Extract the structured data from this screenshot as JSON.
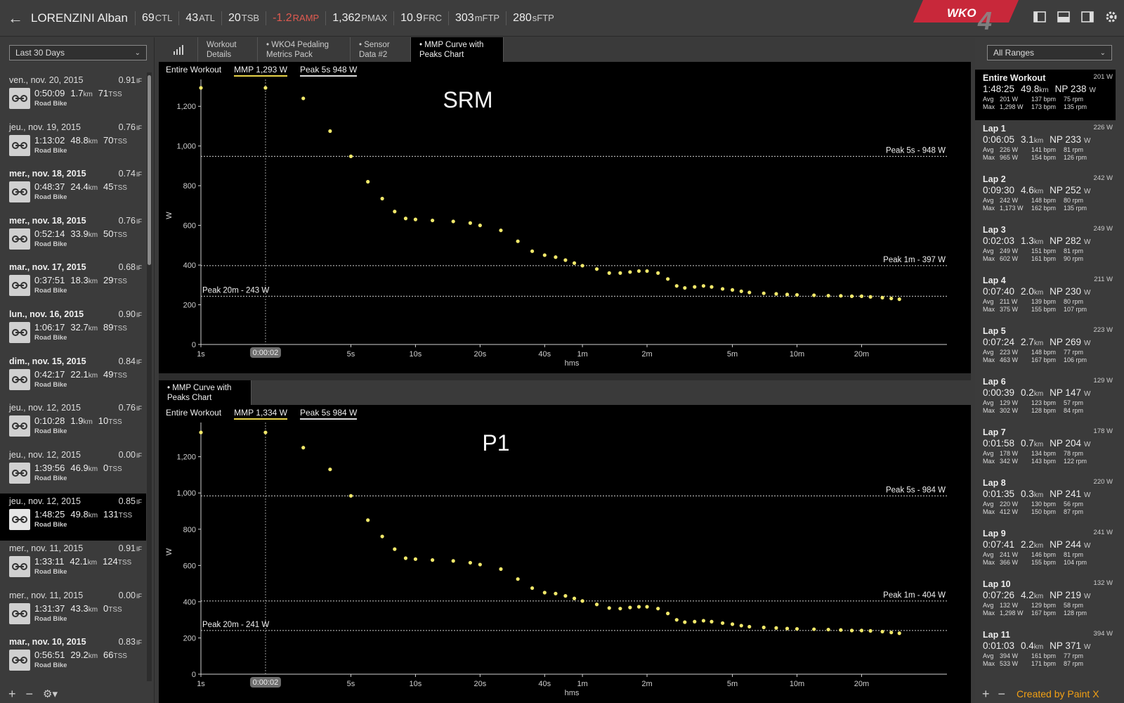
{
  "header": {
    "athlete": "LORENZINI Alban",
    "metrics": [
      {
        "value": "69",
        "unit": "CTL",
        "neg": false
      },
      {
        "value": "43",
        "unit": "ATL",
        "neg": false
      },
      {
        "value": "20",
        "unit": "TSB",
        "neg": false
      },
      {
        "value": "-1.2",
        "unit": "RAMP",
        "neg": true
      },
      {
        "value": "1,362",
        "unit": "PMAX",
        "neg": false
      },
      {
        "value": "10.9",
        "unit": "FRC",
        "neg": false
      },
      {
        "value": "303",
        "unit": "mFTP",
        "neg": false
      },
      {
        "value": "280",
        "unit": "sFTP",
        "neg": false
      }
    ],
    "logo_text": "WKO",
    "logo_num": "4",
    "accent": "#c8283a"
  },
  "left": {
    "range": "Last 30 Days",
    "workouts": [
      {
        "date": "ven., nov. 20, 2015",
        "bold": false,
        "if": "0.91",
        "time": "0:50:09",
        "dist": "1.7",
        "tss": "71",
        "type": "Road Bike",
        "selected": false
      },
      {
        "date": "jeu., nov. 19, 2015",
        "bold": false,
        "if": "0.76",
        "time": "1:13:02",
        "dist": "48.8",
        "tss": "70",
        "type": "Road Bike",
        "selected": false
      },
      {
        "date": "mer., nov. 18, 2015",
        "bold": true,
        "if": "0.74",
        "time": "0:48:37",
        "dist": "24.4",
        "tss": "45",
        "type": "Road Bike",
        "selected": false
      },
      {
        "date": "mer., nov. 18, 2015",
        "bold": true,
        "if": "0.76",
        "time": "0:52:14",
        "dist": "33.9",
        "tss": "50",
        "type": "Road Bike",
        "selected": false
      },
      {
        "date": "mar., nov. 17, 2015",
        "bold": true,
        "if": "0.68",
        "time": "0:37:51",
        "dist": "18.3",
        "tss": "29",
        "type": "Road Bike",
        "selected": false
      },
      {
        "date": "lun., nov. 16, 2015",
        "bold": true,
        "if": "0.90",
        "time": "1:06:17",
        "dist": "32.7",
        "tss": "89",
        "type": "Road Bike",
        "selected": false
      },
      {
        "date": "dim., nov. 15, 2015",
        "bold": true,
        "if": "0.84",
        "time": "0:42:17",
        "dist": "22.1",
        "tss": "49",
        "type": "Road Bike",
        "selected": false
      },
      {
        "date": "jeu., nov. 12, 2015",
        "bold": false,
        "if": "0.76",
        "time": "0:10:28",
        "dist": "1.9",
        "tss": "10",
        "type": "Road Bike",
        "selected": false
      },
      {
        "date": "jeu., nov. 12, 2015",
        "bold": false,
        "if": "0.00",
        "time": "1:39:56",
        "dist": "46.9",
        "tss": "0",
        "type": "Road Bike",
        "selected": false
      },
      {
        "date": "jeu., nov. 12, 2015",
        "bold": false,
        "if": "0.85",
        "time": "1:48:25",
        "dist": "49.8",
        "tss": "131",
        "type": "Road Bike",
        "selected": true
      },
      {
        "date": "mer., nov. 11, 2015",
        "bold": false,
        "if": "0.91",
        "time": "1:33:11",
        "dist": "42.1",
        "tss": "124",
        "type": "Road Bike",
        "selected": false
      },
      {
        "date": "mer., nov. 11, 2015",
        "bold": false,
        "if": "0.00",
        "time": "1:31:37",
        "dist": "43.3",
        "tss": "0",
        "type": "Road Bike",
        "selected": false
      },
      {
        "date": "mar., nov. 10, 2015",
        "bold": true,
        "if": "0.83",
        "time": "0:56:51",
        "dist": "29.2",
        "tss": "66",
        "type": "Road Bike",
        "selected": false
      }
    ],
    "units": {
      "km": "km",
      "tss": "TSS",
      "if": "IF"
    }
  },
  "tabs": [
    {
      "label1": "Workout",
      "label2": "Details",
      "active": false
    },
    {
      "label1": "• WKO4 Pedaling",
      "label2": "Metrics Pack",
      "active": false
    },
    {
      "label1": "• Sensor",
      "label2": "Data #2",
      "active": false
    },
    {
      "label1": "• MMP Curve with",
      "label2": "Peaks Chart",
      "active": true
    }
  ],
  "tab2": {
    "label1": "• MMP Curve with",
    "label2": "Peaks Chart"
  },
  "chart_data": [
    {
      "type": "scatter",
      "title": "SRM",
      "header": {
        "range": "Entire Workout",
        "mmp": "MMP  1,293 W",
        "peak": "Peak 5s  948 W"
      },
      "xlabel": "hms",
      "ylabel": "W",
      "x_ticks": [
        "1s",
        "5s",
        "10s",
        "20s",
        "40s",
        "1m",
        "2m",
        "5m",
        "10m",
        "20m"
      ],
      "y_ticks": [
        "0",
        "200",
        "400",
        "600",
        "800",
        "1,000",
        "1,200"
      ],
      "ylim": [
        0,
        1300
      ],
      "cursor_label": "0:00:02",
      "peaks": [
        {
          "label": "Peak 5s - 948 W",
          "value": 948,
          "side": "right"
        },
        {
          "label": "Peak 1m - 397 W",
          "value": 397,
          "side": "right"
        },
        {
          "label": "Peak 20m - 243 W",
          "value": 243,
          "side": "left"
        }
      ],
      "points_seconds": [
        1,
        2,
        3,
        4,
        5,
        6,
        7,
        8,
        9,
        10,
        12,
        15,
        18,
        20,
        25,
        30,
        35,
        40,
        45,
        50,
        55,
        60,
        70,
        80,
        90,
        100,
        110,
        120,
        135,
        150,
        165,
        180,
        200,
        220,
        240,
        270,
        300,
        330,
        360,
        420,
        480,
        540,
        600,
        720,
        840,
        960,
        1080,
        1200,
        1320,
        1500,
        1650,
        1800
      ],
      "points_watts": [
        1293,
        1293,
        1240,
        1075,
        948,
        820,
        735,
        670,
        635,
        630,
        625,
        620,
        612,
        600,
        575,
        520,
        470,
        450,
        440,
        425,
        410,
        397,
        380,
        360,
        360,
        365,
        370,
        370,
        360,
        330,
        295,
        285,
        290,
        295,
        290,
        280,
        275,
        268,
        262,
        258,
        255,
        252,
        250,
        248,
        246,
        245,
        243,
        243,
        240,
        236,
        232,
        228
      ]
    },
    {
      "type": "scatter",
      "title": "P1",
      "header": {
        "range": "Entire Workout",
        "mmp": "MMP  1,334 W",
        "peak": "Peak 5s  984 W"
      },
      "xlabel": "hms",
      "ylabel": "W",
      "x_ticks": [
        "1s",
        "5s",
        "10s",
        "20s",
        "40s",
        "1m",
        "2m",
        "5m",
        "10m",
        "20m"
      ],
      "y_ticks": [
        "0",
        "200",
        "400",
        "600",
        "800",
        "1,000",
        "1,200"
      ],
      "ylim": [
        0,
        1350
      ],
      "cursor_label": "0:00:02",
      "peaks": [
        {
          "label": "Peak 5s - 984 W",
          "value": 984,
          "side": "right"
        },
        {
          "label": "Peak 1m - 404 W",
          "value": 404,
          "side": "right"
        },
        {
          "label": "Peak 20m - 241 W",
          "value": 241,
          "side": "left"
        }
      ],
      "points_seconds": [
        1,
        2,
        3,
        4,
        5,
        6,
        7,
        8,
        9,
        10,
        12,
        15,
        18,
        20,
        25,
        30,
        35,
        40,
        45,
        50,
        55,
        60,
        70,
        80,
        90,
        100,
        110,
        120,
        135,
        150,
        165,
        180,
        200,
        220,
        240,
        270,
        300,
        330,
        360,
        420,
        480,
        540,
        600,
        720,
        840,
        960,
        1080,
        1200,
        1320,
        1500,
        1650,
        1800
      ],
      "points_watts": [
        1334,
        1334,
        1250,
        1130,
        984,
        850,
        760,
        690,
        640,
        635,
        630,
        625,
        615,
        605,
        580,
        525,
        475,
        450,
        445,
        432,
        418,
        404,
        385,
        365,
        362,
        368,
        372,
        372,
        362,
        335,
        300,
        287,
        290,
        295,
        290,
        282,
        276,
        268,
        262,
        258,
        255,
        252,
        250,
        248,
        246,
        244,
        241,
        241,
        239,
        235,
        230,
        226
      ]
    }
  ],
  "right": {
    "range": "All Ranges",
    "laps": [
      {
        "name": "Entire Workout",
        "w": "201 W",
        "time": "1:48:25",
        "dist": "49.8",
        "np": "NP 238",
        "avg_w": "201 W",
        "avg_hr": "137 bpm",
        "avg_cad": "75 rpm",
        "max_w": "1,298 W",
        "max_hr": "173 bpm",
        "max_cad": "135 rpm",
        "selected": true
      },
      {
        "name": "Lap 1",
        "w": "226 W",
        "time": "0:06:05",
        "dist": "3.1",
        "np": "NP 233",
        "avg_w": "226 W",
        "avg_hr": "141 bpm",
        "avg_cad": "81 rpm",
        "max_w": "965 W",
        "max_hr": "154 bpm",
        "max_cad": "126 rpm",
        "selected": false
      },
      {
        "name": "Lap 2",
        "w": "242 W",
        "time": "0:09:30",
        "dist": "4.6",
        "np": "NP 252",
        "avg_w": "242 W",
        "avg_hr": "148 bpm",
        "avg_cad": "80 rpm",
        "max_w": "1,173 W",
        "max_hr": "162 bpm",
        "max_cad": "135 rpm",
        "selected": false
      },
      {
        "name": "Lap 3",
        "w": "249 W",
        "time": "0:02:03",
        "dist": "1.3",
        "np": "NP 282",
        "avg_w": "249 W",
        "avg_hr": "151 bpm",
        "avg_cad": "81 rpm",
        "max_w": "602 W",
        "max_hr": "161 bpm",
        "max_cad": "90 rpm",
        "selected": false
      },
      {
        "name": "Lap 4",
        "w": "211 W",
        "time": "0:07:40",
        "dist": "2.0",
        "np": "NP 230",
        "avg_w": "211 W",
        "avg_hr": "139 bpm",
        "avg_cad": "80 rpm",
        "max_w": "375 W",
        "max_hr": "155 bpm",
        "max_cad": "107 rpm",
        "selected": false
      },
      {
        "name": "Lap 5",
        "w": "223 W",
        "time": "0:07:24",
        "dist": "2.7",
        "np": "NP 269",
        "avg_w": "223 W",
        "avg_hr": "148 bpm",
        "avg_cad": "77 rpm",
        "max_w": "463 W",
        "max_hr": "167 bpm",
        "max_cad": "106 rpm",
        "selected": false
      },
      {
        "name": "Lap 6",
        "w": "129 W",
        "time": "0:00:39",
        "dist": "0.2",
        "np": "NP 147",
        "avg_w": "129 W",
        "avg_hr": "123 bpm",
        "avg_cad": "57 rpm",
        "max_w": "302 W",
        "max_hr": "128 bpm",
        "max_cad": "84 rpm",
        "selected": false
      },
      {
        "name": "Lap 7",
        "w": "178 W",
        "time": "0:01:58",
        "dist": "0.7",
        "np": "NP 204",
        "avg_w": "178 W",
        "avg_hr": "134 bpm",
        "avg_cad": "78 rpm",
        "max_w": "342 W",
        "max_hr": "143 bpm",
        "max_cad": "122 rpm",
        "selected": false
      },
      {
        "name": "Lap 8",
        "w": "220 W",
        "time": "0:01:35",
        "dist": "0.3",
        "np": "NP 241",
        "avg_w": "220 W",
        "avg_hr": "130 bpm",
        "avg_cad": "56 rpm",
        "max_w": "412 W",
        "max_hr": "150 bpm",
        "max_cad": "87 rpm",
        "selected": false
      },
      {
        "name": "Lap 9",
        "w": "241 W",
        "time": "0:07:41",
        "dist": "2.2",
        "np": "NP 244",
        "avg_w": "241 W",
        "avg_hr": "146 bpm",
        "avg_cad": "81 rpm",
        "max_w": "366 W",
        "max_hr": "155 bpm",
        "max_cad": "104 rpm",
        "selected": false
      },
      {
        "name": "Lap 10",
        "w": "132 W",
        "time": "0:07:26",
        "dist": "4.2",
        "np": "NP 219",
        "avg_w": "132 W",
        "avg_hr": "129 bpm",
        "avg_cad": "58 rpm",
        "max_w": "1,298 W",
        "max_hr": "167 bpm",
        "max_cad": "128 rpm",
        "selected": false
      },
      {
        "name": "Lap 11",
        "w": "394 W",
        "time": "0:01:03",
        "dist": "0.4",
        "np": "NP 371",
        "avg_w": "394 W",
        "avg_hr": "161 bpm",
        "avg_cad": "77 rpm",
        "max_w": "533 W",
        "max_hr": "171 bpm",
        "max_cad": "87 rpm",
        "selected": false
      }
    ],
    "labels": {
      "avg": "Avg",
      "max": "Max",
      "km": "km",
      "w": "W"
    },
    "credit": "Created by Paint X"
  },
  "colors": {
    "point": "#f1e86a",
    "grid": "#bfbfbf"
  }
}
